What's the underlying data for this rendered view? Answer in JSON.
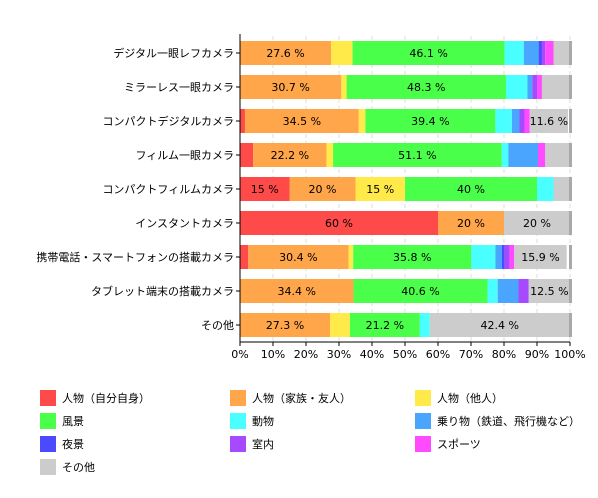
{
  "chart_data": {
    "type": "bar",
    "orientation": "horizontal",
    "stacked": "percent",
    "categories": [
      "デジタル一眼レフカメラ",
      "ミラーレス一眼カメラ",
      "コンパクトデジタルカメラ",
      "フィルム一眼カメラ",
      "コンパクトフィルムカメラ",
      "インスタントカメラ",
      "携帯電話・スマートフォンの搭載カメラ",
      "タブレット端末の搭載カメラ",
      "その他"
    ],
    "series": [
      {
        "name": "人物（自分自身）",
        "color": "#ff4a4a",
        "values": [
          0,
          0,
          1.5,
          4.0,
          15,
          60,
          2.5,
          0,
          0
        ]
      },
      {
        "name": "人物（家族・友人）",
        "color": "#ffa54a",
        "values": [
          27.6,
          30.7,
          34.5,
          22.2,
          20,
          20,
          30.4,
          34.4,
          27.3
        ]
      },
      {
        "name": "人物（他人）",
        "color": "#ffea4a",
        "values": [
          6.5,
          1.6,
          2.0,
          2.0,
          15,
          0,
          1.4,
          0,
          6.0
        ]
      },
      {
        "name": "風景",
        "color": "#4aff4a",
        "values": [
          46.1,
          48.3,
          39.4,
          51.1,
          40,
          0,
          35.8,
          40.6,
          21.2
        ]
      },
      {
        "name": "動物",
        "color": "#4affff",
        "values": [
          5.8,
          6.5,
          5.0,
          2.0,
          5,
          0,
          7.3,
          3.1,
          3.0
        ]
      },
      {
        "name": "乗り物（鉄道、飛行機など）",
        "color": "#4aa5ff",
        "values": [
          4.5,
          1.5,
          2.3,
          9.0,
          0,
          0,
          2.0,
          6.3,
          0
        ]
      },
      {
        "name": "夜景",
        "color": "#4a4aff",
        "values": [
          1.0,
          0,
          0,
          0,
          0,
          0,
          0.8,
          0,
          0
        ]
      },
      {
        "name": "室内",
        "color": "#a54aff",
        "values": [
          1.0,
          1.5,
          1.5,
          0,
          0,
          0,
          1.5,
          3.1,
          0
        ]
      },
      {
        "name": "スポーツ",
        "color": "#ff4aff",
        "values": [
          2.5,
          1.4,
          1.6,
          2.2,
          0,
          0,
          1.4,
          0,
          0
        ]
      },
      {
        "name": "その他",
        "color": "#cccccc",
        "values": [
          5.0,
          8.5,
          11.6,
          7.5,
          5,
          20,
          15.9,
          12.5,
          42.4
        ]
      }
    ],
    "data_labels": [
      [
        {
          "series": 1,
          "text": "27.6 %"
        },
        {
          "series": 3,
          "text": "46.1 %"
        }
      ],
      [
        {
          "series": 1,
          "text": "30.7 %"
        },
        {
          "series": 3,
          "text": "48.3 %"
        }
      ],
      [
        {
          "series": 1,
          "text": "34.5 %"
        },
        {
          "series": 3,
          "text": "39.4 %"
        },
        {
          "series": 9,
          "text": "11.6 %"
        }
      ],
      [
        {
          "series": 1,
          "text": "22.2 %"
        },
        {
          "series": 3,
          "text": "51.1 %"
        }
      ],
      [
        {
          "series": 0,
          "text": "15 %"
        },
        {
          "series": 1,
          "text": "20 %"
        },
        {
          "series": 2,
          "text": "15 %"
        },
        {
          "series": 3,
          "text": "40 %"
        }
      ],
      [
        {
          "series": 0,
          "text": "60 %"
        },
        {
          "series": 1,
          "text": "20 %"
        },
        {
          "series": 9,
          "text": "20 %"
        }
      ],
      [
        {
          "series": 1,
          "text": "30.4 %"
        },
        {
          "series": 3,
          "text": "35.8 %"
        },
        {
          "series": 9,
          "text": "15.9 %"
        }
      ],
      [
        {
          "series": 1,
          "text": "34.4 %"
        },
        {
          "series": 3,
          "text": "40.6 %"
        },
        {
          "series": 9,
          "text": "12.5 %"
        }
      ],
      [
        {
          "series": 1,
          "text": "27.3 %"
        },
        {
          "series": 3,
          "text": "21.2 %"
        },
        {
          "series": 9,
          "text": "42.4 %"
        }
      ]
    ],
    "xlim": [
      0,
      100
    ],
    "xticks": [
      "0%",
      "10%",
      "20%",
      "30%",
      "40%",
      "50%",
      "60%",
      "70%",
      "80%",
      "90%",
      "100%"
    ],
    "grid": true,
    "legend_position": "bottom"
  }
}
